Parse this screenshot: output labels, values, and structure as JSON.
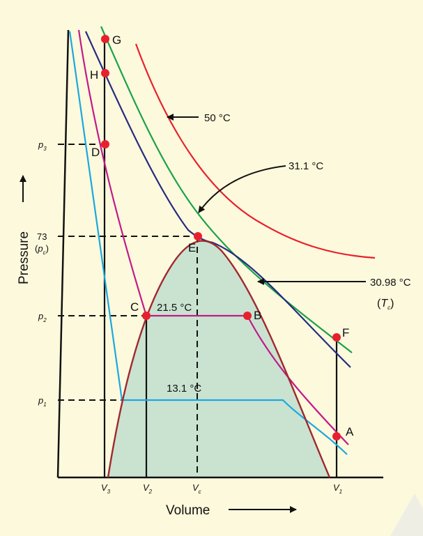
{
  "axes": {
    "y_title": "Pressure",
    "x_title": "Volume",
    "y_ticks": {
      "p3": {
        "base": "p",
        "sub": "3"
      },
      "p73": "73",
      "pc": {
        "base": "p",
        "sub": "c"
      },
      "p2": {
        "base": "p",
        "sub": "2"
      },
      "p1": {
        "base": "p",
        "sub": "1"
      }
    },
    "x_ticks": {
      "v3": {
        "base": "V",
        "sub": "3"
      },
      "v2": {
        "base": "V",
        "sub": "2"
      },
      "vc": {
        "base": "V",
        "sub": "c"
      },
      "v1": {
        "base": "V",
        "sub": "1"
      }
    }
  },
  "isotherms": {
    "t50": "50 °C",
    "t311": "31.1 °C",
    "t3098": "30.98 °C",
    "tc": {
      "base": "T",
      "sub": "c"
    },
    "t215": "21.5 °C",
    "t131": "13.1 °C"
  },
  "points": {
    "G": "G",
    "H": "H",
    "D": "D",
    "E": "E",
    "C": "C",
    "B": "B",
    "F": "F",
    "A": "A"
  },
  "colors": {
    "background": "#fdf9dc",
    "two_phase_region": "#c9e3d0",
    "dome": "#a02830",
    "iso_50": "#e8202e",
    "iso_31_1": "#18a24a",
    "iso_30_98": "#262b82",
    "iso_21_5": "#c21a8a",
    "iso_13_1": "#1aa8e0",
    "point": "#e8202e"
  }
}
